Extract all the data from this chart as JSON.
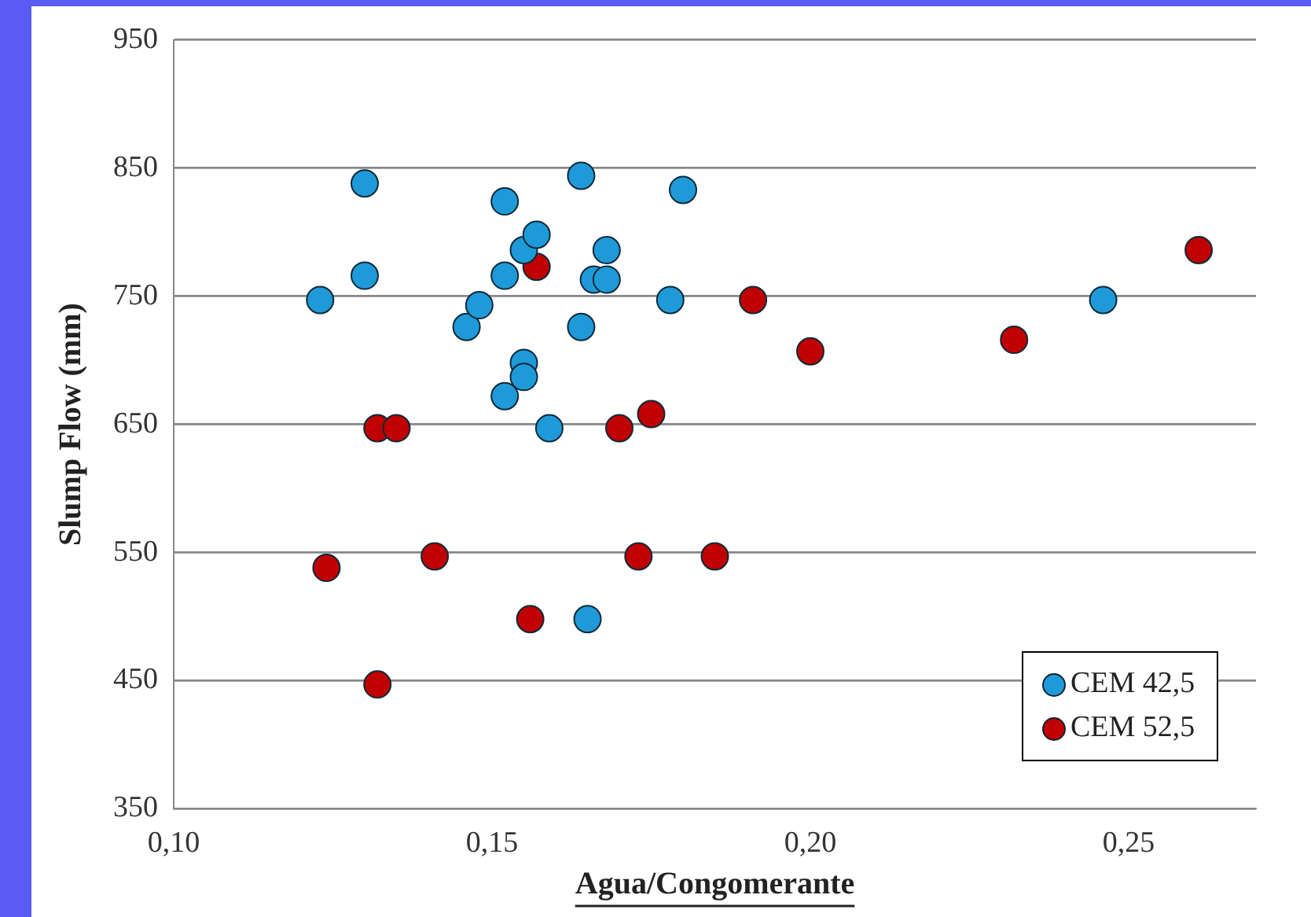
{
  "chart_data": {
    "type": "scatter",
    "xlabel": "Agua/Congomerante",
    "ylabel": "Slump Flow (mm)",
    "xlim": [
      0.1,
      0.27
    ],
    "xticks": [
      {
        "value": 0.1,
        "label": "0,10"
      },
      {
        "value": 0.15,
        "label": "0,15"
      },
      {
        "value": 0.2,
        "label": "0,20"
      },
      {
        "value": 0.25,
        "label": "0,25"
      }
    ],
    "ylim": [
      350,
      950
    ],
    "yticks": [
      350,
      450,
      550,
      650,
      750,
      850,
      950
    ],
    "grid": "y",
    "legend": "bottom right",
    "marker": "circle",
    "series": [
      {
        "name": "CEM 42,5",
        "color": "#1f9ad8",
        "x": [
          0.123,
          0.13,
          0.13,
          0.146,
          0.148,
          0.152,
          0.152,
          0.152,
          0.155,
          0.155,
          0.155,
          0.157,
          0.159,
          0.164,
          0.164,
          0.165,
          0.166,
          0.168,
          0.168,
          0.178,
          0.18,
          0.246
        ],
        "values": [
          747,
          838,
          766,
          726,
          743,
          824,
          766,
          672,
          698,
          687,
          786,
          798,
          647,
          844,
          726,
          498,
          763,
          763,
          786,
          747,
          833,
          747
        ]
      },
      {
        "name": "CEM 52,5",
        "color": "#c00000",
        "x": [
          0.124,
          0.132,
          0.135,
          0.132,
          0.141,
          0.157,
          0.156,
          0.17,
          0.173,
          0.175,
          0.185,
          0.191,
          0.2,
          0.232,
          0.261
        ],
        "values": [
          538,
          647,
          647,
          447,
          547,
          773,
          498,
          647,
          547,
          658,
          547,
          747,
          707,
          716,
          786
        ]
      }
    ]
  }
}
